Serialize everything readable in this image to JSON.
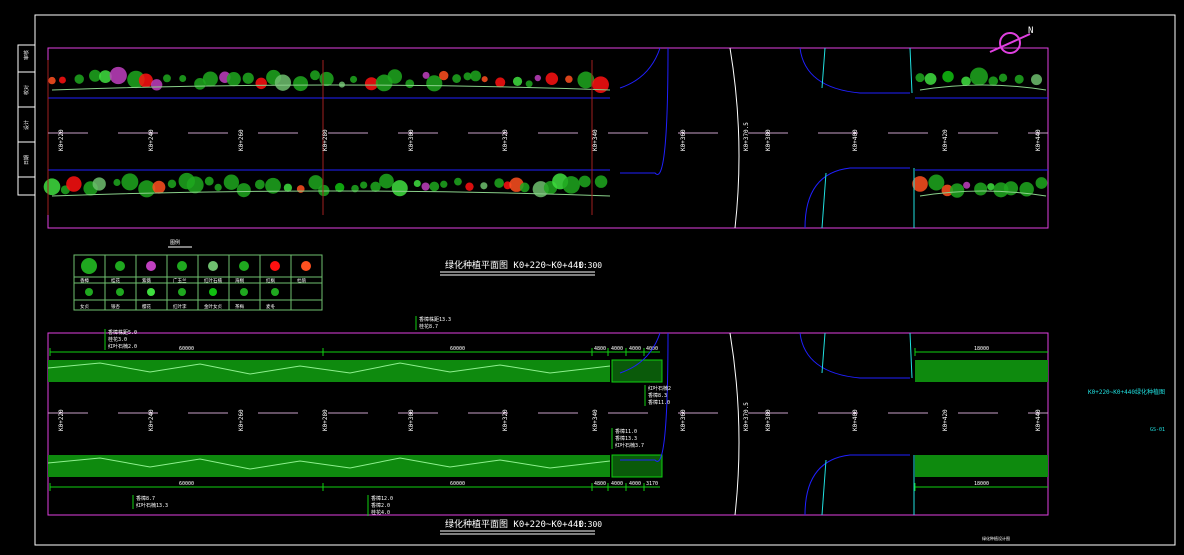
{
  "drawing": {
    "plan_title": "绿化种植平面图 K0+220~K0+440",
    "plan_scale": "1:300",
    "section_title": "绿化种植平面图 K0+220~K0+440",
    "section_scale": "1:300",
    "side_label": "K0+220~K0+440绿化种植图",
    "sheet_number": "GS-01",
    "footer_note": "绿化种植设计图",
    "north_label": "N",
    "stations": [
      "K0+220",
      "K0+240",
      "K0+260",
      "K0+280",
      "K0+300",
      "K0+320",
      "K0+340",
      "K0+360",
      "K0+380",
      "K0+400",
      "K0+420",
      "K0+440"
    ],
    "intersection_station": "K0+370.5",
    "top_dims": [
      "60000",
      "60000",
      "4800",
      "4000",
      "4000",
      "4000",
      "18000"
    ],
    "bottom_dims": [
      "60000",
      "60000",
      "4800",
      "4000",
      "4000",
      "3170",
      "18000"
    ],
    "annotations_top": [
      "香樟株距5.0",
      "桂花3.0",
      "红叶石楠2.0",
      "香樟株距13.3",
      "桂花8.7"
    ],
    "annotations_right_top": [
      "红叶石楠2",
      "香樟8.3",
      "香樟11.0"
    ],
    "annotations_right_bottom": [
      "香樟11.0",
      "香樟13.3",
      "红叶石楠3.7"
    ],
    "annotations_bottom": [
      "香樟8.7",
      "红叶石楠13.3",
      "香樟12.0",
      "香樟2.0",
      "桂花4.0"
    ],
    "title_block": [
      "审核",
      "校对",
      "设计",
      "日期"
    ]
  },
  "legend": {
    "title": "图例",
    "row1": [
      "香樟",
      "桂花",
      "紫薇",
      "广玉兰",
      "红叶石楠",
      "海桐",
      "红枫",
      "杜鹃"
    ],
    "row2": [
      "女贞",
      "银杏",
      "樱花",
      "红叶李",
      "金叶女贞",
      "茶梅",
      "麦冬"
    ],
    "colors": [
      "#1fa81f",
      "#1fa81f",
      "#c040c0",
      "#1fa81f",
      "#6fbf6f",
      "#1fa81f",
      "#ff1010",
      "#ff5020",
      "#1fa81f",
      "#1fa81f",
      "#3fdf3f",
      "#1fa81f",
      "#10c010",
      "#1fa81f",
      "#1fa81f"
    ]
  },
  "colors": {
    "frame": "#ffffff",
    "border": "#e040e0",
    "road": "#2020ff",
    "green": "#10d010",
    "text": "#ffffff",
    "cyan": "#20e0e0"
  }
}
